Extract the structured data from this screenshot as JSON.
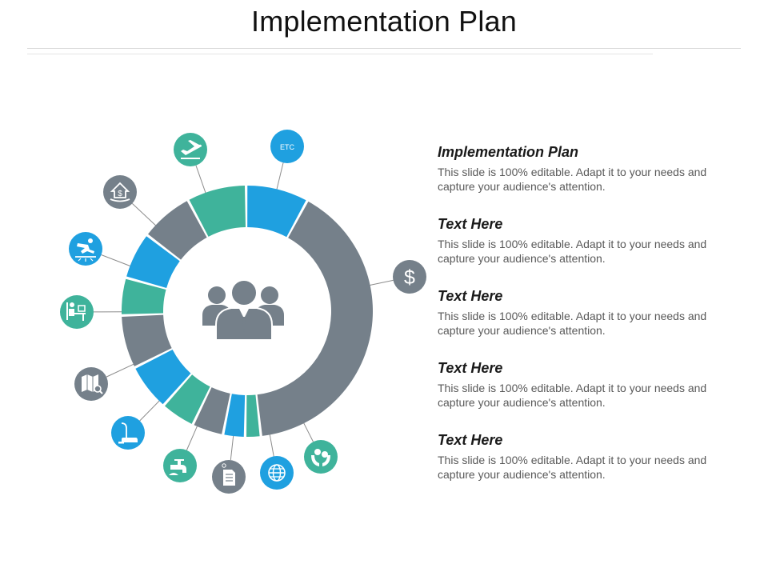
{
  "title": "Implementation Plan",
  "colors": {
    "gray": "#75808a",
    "blue": "#1fa0e0",
    "teal": "#3fb39b",
    "white": "#ffffff"
  },
  "center_icon": "team-icon",
  "ring_segments": [
    {
      "color": "blue",
      "share": 1
    },
    {
      "color": "gray",
      "share": 5
    },
    {
      "color": "teal",
      "share": 0.25
    },
    {
      "color": "blue",
      "share": 0.35
    },
    {
      "color": "gray",
      "share": 0.5
    },
    {
      "color": "teal",
      "share": 0.55
    },
    {
      "color": "blue",
      "share": 0.75
    },
    {
      "color": "gray",
      "share": 0.85
    },
    {
      "color": "teal",
      "share": 0.6
    },
    {
      "color": "blue",
      "share": 0.75
    },
    {
      "color": "gray",
      "share": 0.85
    },
    {
      "color": "teal",
      "share": 0.95
    }
  ],
  "outer_icons": [
    {
      "name": "etc-label",
      "color": "blue",
      "label": "ETC"
    },
    {
      "name": "dollar-icon",
      "color": "gray",
      "label": "$"
    },
    {
      "name": "money-hands-icon",
      "color": "teal",
      "label": ""
    },
    {
      "name": "globe-icon",
      "color": "blue",
      "label": ""
    },
    {
      "name": "document-icon",
      "color": "gray",
      "label": ""
    },
    {
      "name": "faucet-icon",
      "color": "teal",
      "label": ""
    },
    {
      "name": "vacuum-cleaner-icon",
      "color": "blue",
      "label": ""
    },
    {
      "name": "map-search-icon",
      "color": "gray",
      "label": ""
    },
    {
      "name": "desk-worker-icon",
      "color": "teal",
      "label": ""
    },
    {
      "name": "slip-hazard-icon",
      "color": "blue",
      "label": ""
    },
    {
      "name": "house-money-icon",
      "color": "gray",
      "label": ""
    },
    {
      "name": "airplane-takeoff-icon",
      "color": "teal",
      "label": ""
    }
  ],
  "text_blocks": [
    {
      "heading": "Implementation Plan",
      "body": "This slide is 100% editable. Adapt it to your needs and capture your audience's attention."
    },
    {
      "heading": "Text Here",
      "body": "This slide is 100% editable. Adapt it to your needs and capture your audience's attention."
    },
    {
      "heading": "Text Here",
      "body": "This slide is 100% editable. Adapt it to your needs and capture your audience's attention."
    },
    {
      "heading": "Text Here",
      "body": "This slide is 100% editable. Adapt it to your needs and capture your audience's attention."
    },
    {
      "heading": "Text Here",
      "body": "This slide is 100% editable. Adapt it to your needs and capture your audience's attention."
    }
  ]
}
